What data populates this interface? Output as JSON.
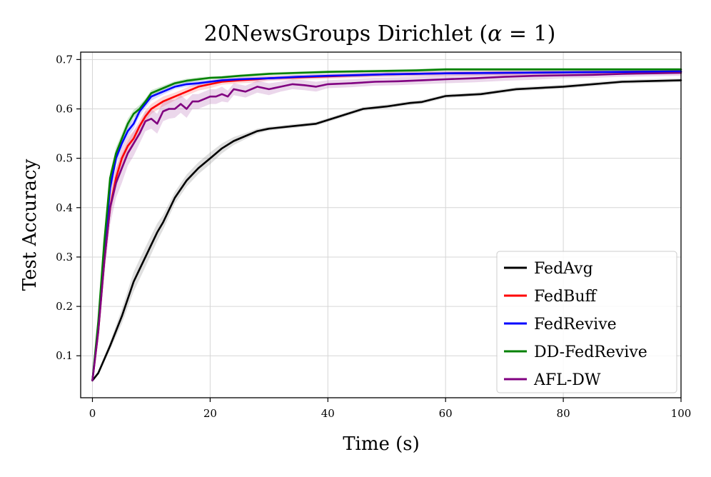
{
  "chart_data": {
    "type": "line",
    "title": "20NewsGroups Dirichlet (α = 1)",
    "title_parts": {
      "prefix": "20NewsGroups Dirichlet (",
      "alpha": "α",
      "suffix": " = 1)"
    },
    "xlabel": "Time (s)",
    "ylabel": "Test Accuracy",
    "xlim": [
      -2,
      100
    ],
    "ylim": [
      0.015,
      0.715
    ],
    "xticks": [
      0,
      20,
      40,
      60,
      80,
      100
    ],
    "xtick_labels": [
      "0",
      "20",
      "40",
      "60",
      "80",
      "100"
    ],
    "yticks": [
      0.1,
      0.2,
      0.3,
      0.4,
      0.5,
      0.6,
      0.7
    ],
    "ytick_labels": [
      "0.1",
      "0.2",
      "0.3",
      "0.4",
      "0.5",
      "0.6",
      "0.7"
    ],
    "grid": true,
    "legend_position": "lower-right",
    "series": [
      {
        "name": "FedAvg",
        "color": "#000000",
        "band_color": "#808080",
        "x": [
          0,
          1,
          3,
          5,
          7,
          9,
          11,
          12,
          14,
          16,
          18,
          20,
          22,
          24,
          26,
          28,
          30,
          34,
          38,
          42,
          46,
          50,
          54,
          56,
          60,
          66,
          72,
          80,
          90,
          100
        ],
        "y": [
          0.05,
          0.065,
          0.12,
          0.18,
          0.25,
          0.3,
          0.35,
          0.37,
          0.42,
          0.455,
          0.48,
          0.5,
          0.52,
          0.535,
          0.545,
          0.555,
          0.56,
          0.565,
          0.57,
          0.585,
          0.6,
          0.605,
          0.612,
          0.614,
          0.626,
          0.63,
          0.64,
          0.645,
          0.655,
          0.658
        ],
        "spread": [
          0,
          0.004,
          0.008,
          0.015,
          0.02,
          0.02,
          0.018,
          0.015,
          0.012,
          0.012,
          0.012,
          0.012,
          0.01,
          0.008,
          0.006,
          0.005,
          0.004,
          0.004,
          0.004,
          0.004,
          0.004,
          0.004,
          0.004,
          0.004,
          0.004,
          0.004,
          0.004,
          0.004,
          0.004,
          0.004
        ]
      },
      {
        "name": "FedBuff",
        "color": "#ff0000",
        "band_color": "#ff6060",
        "x": [
          0,
          1,
          2,
          3,
          4,
          5,
          6,
          7,
          8,
          9,
          10,
          12,
          14,
          16,
          18,
          20,
          22,
          25,
          28,
          30,
          35,
          40,
          45,
          50,
          55,
          60,
          70,
          80,
          90,
          100
        ],
        "y": [
          0.05,
          0.15,
          0.29,
          0.4,
          0.46,
          0.5,
          0.525,
          0.54,
          0.565,
          0.585,
          0.6,
          0.615,
          0.625,
          0.635,
          0.645,
          0.65,
          0.655,
          0.658,
          0.66,
          0.662,
          0.664,
          0.666,
          0.668,
          0.67,
          0.671,
          0.672,
          0.673,
          0.674,
          0.675,
          0.676
        ],
        "spread": [
          0,
          0.01,
          0.015,
          0.02,
          0.02,
          0.02,
          0.018,
          0.015,
          0.012,
          0.012,
          0.01,
          0.01,
          0.008,
          0.008,
          0.008,
          0.008,
          0.006,
          0.006,
          0.006,
          0.005,
          0.005,
          0.005,
          0.005,
          0.005,
          0.005,
          0.005,
          0.005,
          0.005,
          0.005,
          0.005
        ]
      },
      {
        "name": "FedRevive",
        "color": "#0000ff",
        "band_color": "#6060ff",
        "x": [
          0,
          1,
          2,
          3,
          4,
          5,
          6,
          7,
          8,
          9,
          10,
          12,
          14,
          16,
          18,
          20,
          22,
          25,
          30,
          35,
          40,
          50,
          60,
          70,
          80,
          90,
          100
        ],
        "y": [
          0.05,
          0.16,
          0.31,
          0.44,
          0.5,
          0.53,
          0.555,
          0.57,
          0.595,
          0.61,
          0.625,
          0.635,
          0.645,
          0.65,
          0.652,
          0.655,
          0.658,
          0.66,
          0.662,
          0.665,
          0.667,
          0.67,
          0.672,
          0.673,
          0.674,
          0.675,
          0.676
        ],
        "spread": [
          0,
          0.01,
          0.012,
          0.015,
          0.015,
          0.012,
          0.012,
          0.01,
          0.01,
          0.008,
          0.008,
          0.006,
          0.005,
          0.005,
          0.005,
          0.004,
          0.004,
          0.004,
          0.004,
          0.004,
          0.004,
          0.004,
          0.004,
          0.004,
          0.004,
          0.004,
          0.004
        ]
      },
      {
        "name": "DD-FedRevive",
        "color": "#008000",
        "band_color": "#40a040",
        "x": [
          0,
          1,
          2,
          3,
          4,
          5,
          6,
          7,
          8,
          9,
          10,
          12,
          14,
          16,
          18,
          20,
          22,
          25,
          30,
          35,
          40,
          50,
          55,
          60,
          70,
          80,
          90,
          100
        ],
        "y": [
          0.05,
          0.17,
          0.33,
          0.46,
          0.51,
          0.54,
          0.57,
          0.59,
          0.6,
          0.615,
          0.632,
          0.642,
          0.652,
          0.657,
          0.66,
          0.663,
          0.664,
          0.667,
          0.671,
          0.673,
          0.675,
          0.677,
          0.678,
          0.68,
          0.68,
          0.68,
          0.68,
          0.68
        ],
        "spread": [
          0,
          0.01,
          0.012,
          0.012,
          0.012,
          0.01,
          0.01,
          0.008,
          0.008,
          0.006,
          0.006,
          0.005,
          0.004,
          0.004,
          0.004,
          0.003,
          0.003,
          0.003,
          0.003,
          0.003,
          0.003,
          0.003,
          0.003,
          0.003,
          0.003,
          0.003,
          0.003,
          0.003
        ]
      },
      {
        "name": "AFL-DW",
        "color": "#800080",
        "band_color": "#b060b0",
        "x": [
          0,
          1,
          2,
          3,
          4,
          5,
          6,
          7,
          8,
          9,
          10,
          11,
          12,
          13,
          14,
          15,
          16,
          17,
          18,
          19,
          20,
          21,
          22,
          23,
          24,
          26,
          28,
          30,
          32,
          34,
          36,
          38,
          40,
          44,
          48,
          52,
          56,
          60,
          65,
          70,
          75,
          80,
          85,
          90,
          95,
          100
        ],
        "y": [
          0.05,
          0.15,
          0.29,
          0.4,
          0.45,
          0.48,
          0.51,
          0.53,
          0.55,
          0.575,
          0.58,
          0.57,
          0.595,
          0.6,
          0.6,
          0.61,
          0.6,
          0.615,
          0.615,
          0.62,
          0.625,
          0.625,
          0.63,
          0.625,
          0.64,
          0.635,
          0.645,
          0.64,
          0.645,
          0.65,
          0.648,
          0.645,
          0.65,
          0.652,
          0.655,
          0.656,
          0.658,
          0.66,
          0.662,
          0.665,
          0.667,
          0.668,
          0.669,
          0.671,
          0.672,
          0.673
        ],
        "spread": [
          0,
          0.02,
          0.03,
          0.035,
          0.03,
          0.03,
          0.025,
          0.025,
          0.02,
          0.02,
          0.02,
          0.02,
          0.02,
          0.02,
          0.018,
          0.018,
          0.018,
          0.015,
          0.015,
          0.015,
          0.015,
          0.015,
          0.015,
          0.012,
          0.012,
          0.012,
          0.012,
          0.012,
          0.01,
          0.01,
          0.01,
          0.01,
          0.008,
          0.008,
          0.008,
          0.008,
          0.008,
          0.008,
          0.008,
          0.008,
          0.008,
          0.006,
          0.006,
          0.006,
          0.006,
          0.006
        ]
      }
    ]
  }
}
